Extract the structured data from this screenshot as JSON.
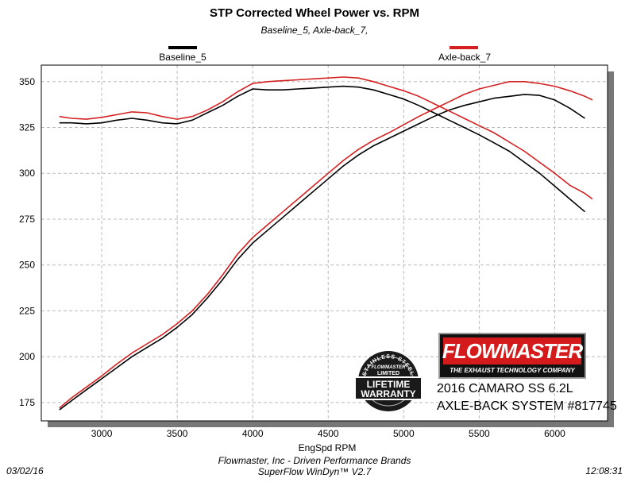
{
  "header": {
    "title": "STP Corrected Wheel Power vs. RPM",
    "subtitle": "Baseline_5, Axle-back_7,"
  },
  "footer": {
    "date": "03/02/16",
    "company": "Flowmaster, Inc - Driven Performance Brands",
    "software": "SuperFlow WinDyn™ V2.7",
    "time": "12:08:31"
  },
  "branding": {
    "logo_text": "FLOWMASTER",
    "logo_tagline": "THE EXHAUST TECHNOLOGY COMPANY",
    "warranty_top": "STAINLESS STEEL",
    "warranty_mid": "FLOWMASTER",
    "warranty_limited": "LIMITED",
    "warranty_line1": "LIFETIME",
    "warranty_line2": "WARRANTY",
    "car_line1": "2016 CAMARO SS 6.2L",
    "car_line2": "AXLE-BACK SYSTEM #817745"
  },
  "colors": {
    "baseline": "#000000",
    "axleback": "#d42020",
    "logo_red": "#d41a1a"
  },
  "chart_data": {
    "type": "line",
    "title": "STP Corrected Wheel Power vs. RPM",
    "xlabel": "EngSpd RPM",
    "ylabel": "",
    "xlim": [
      2600,
      6350
    ],
    "ylim": [
      165,
      359
    ],
    "x_ticks": [
      3000,
      3500,
      4000,
      4500,
      5000,
      5500,
      6000
    ],
    "y_ticks": [
      175,
      200,
      225,
      250,
      275,
      300,
      325,
      350
    ],
    "grid": true,
    "legend_placement": "top",
    "series": [
      {
        "name": "Baseline_5",
        "color": "#000000",
        "measure": "power",
        "x": [
          2720,
          2800,
          2900,
          3000,
          3100,
          3200,
          3300,
          3400,
          3500,
          3600,
          3700,
          3800,
          3900,
          4000,
          4100,
          4200,
          4300,
          4400,
          4500,
          4600,
          4700,
          4800,
          4900,
          5000,
          5100,
          5200,
          5300,
          5400,
          5500,
          5600,
          5700,
          5800,
          5900,
          6000,
          6100,
          6200
        ],
        "y": [
          327.5,
          327.5,
          327,
          327.5,
          329,
          330,
          329,
          327.5,
          327,
          329,
          333,
          337,
          342,
          346,
          345.5,
          345.5,
          346,
          346.5,
          347,
          347.5,
          347,
          345.5,
          343,
          340.5,
          337,
          333,
          329,
          325,
          321,
          316.5,
          312,
          306,
          300,
          293,
          286,
          279
        ]
      },
      {
        "name": "Baseline_5",
        "color": "#000000",
        "measure": "torque",
        "x": [
          2720,
          2800,
          2900,
          3000,
          3100,
          3200,
          3300,
          3400,
          3500,
          3600,
          3700,
          3800,
          3900,
          4000,
          4100,
          4200,
          4300,
          4400,
          4500,
          4600,
          4700,
          4800,
          4900,
          5000,
          5100,
          5200,
          5300,
          5400,
          5500,
          5600,
          5700,
          5800,
          5900,
          6000,
          6100,
          6200
        ],
        "y": [
          171,
          176,
          182,
          188,
          194,
          200,
          205,
          210,
          216,
          223,
          232,
          242,
          253,
          262,
          269,
          276,
          283,
          290,
          297,
          304,
          310,
          315,
          319,
          323,
          327,
          331,
          334.5,
          337,
          339,
          341,
          342,
          343,
          342.5,
          340,
          335.5,
          330
        ]
      },
      {
        "name": "Axle-back_7",
        "color": "#d42020",
        "measure": "power",
        "x": [
          2720,
          2800,
          2900,
          3000,
          3100,
          3200,
          3300,
          3400,
          3500,
          3600,
          3700,
          3800,
          3900,
          4000,
          4100,
          4200,
          4300,
          4400,
          4500,
          4600,
          4700,
          4800,
          4900,
          5000,
          5100,
          5200,
          5300,
          5400,
          5500,
          5600,
          5700,
          5800,
          5900,
          6000,
          6100,
          6200,
          6250
        ],
        "y": [
          331,
          330,
          329.5,
          330.5,
          332,
          333.5,
          333,
          331,
          329.5,
          331,
          334.5,
          339,
          344.5,
          349,
          350,
          350.5,
          351,
          351.5,
          352,
          352.5,
          352,
          350,
          347.5,
          345,
          342,
          338,
          334,
          330,
          326,
          322,
          317,
          312,
          306,
          300,
          293.5,
          289,
          286
        ]
      },
      {
        "name": "Axle-back_7",
        "color": "#d42020",
        "measure": "torque",
        "x": [
          2720,
          2800,
          2900,
          3000,
          3100,
          3200,
          3300,
          3400,
          3500,
          3600,
          3700,
          3800,
          3900,
          4000,
          4100,
          4200,
          4300,
          4400,
          4500,
          4600,
          4700,
          4800,
          4900,
          5000,
          5100,
          5200,
          5300,
          5400,
          5500,
          5600,
          5700,
          5800,
          5900,
          6000,
          6100,
          6200,
          6250
        ],
        "y": [
          172,
          177.5,
          183.5,
          189.5,
          196,
          202,
          207,
          212,
          218,
          225,
          234,
          244.5,
          256,
          265,
          272,
          279,
          286,
          293,
          300,
          307,
          313,
          318,
          322,
          326.5,
          331,
          335,
          339,
          343,
          346,
          348,
          350,
          350,
          349,
          347.5,
          345,
          342,
          340
        ]
      }
    ]
  }
}
